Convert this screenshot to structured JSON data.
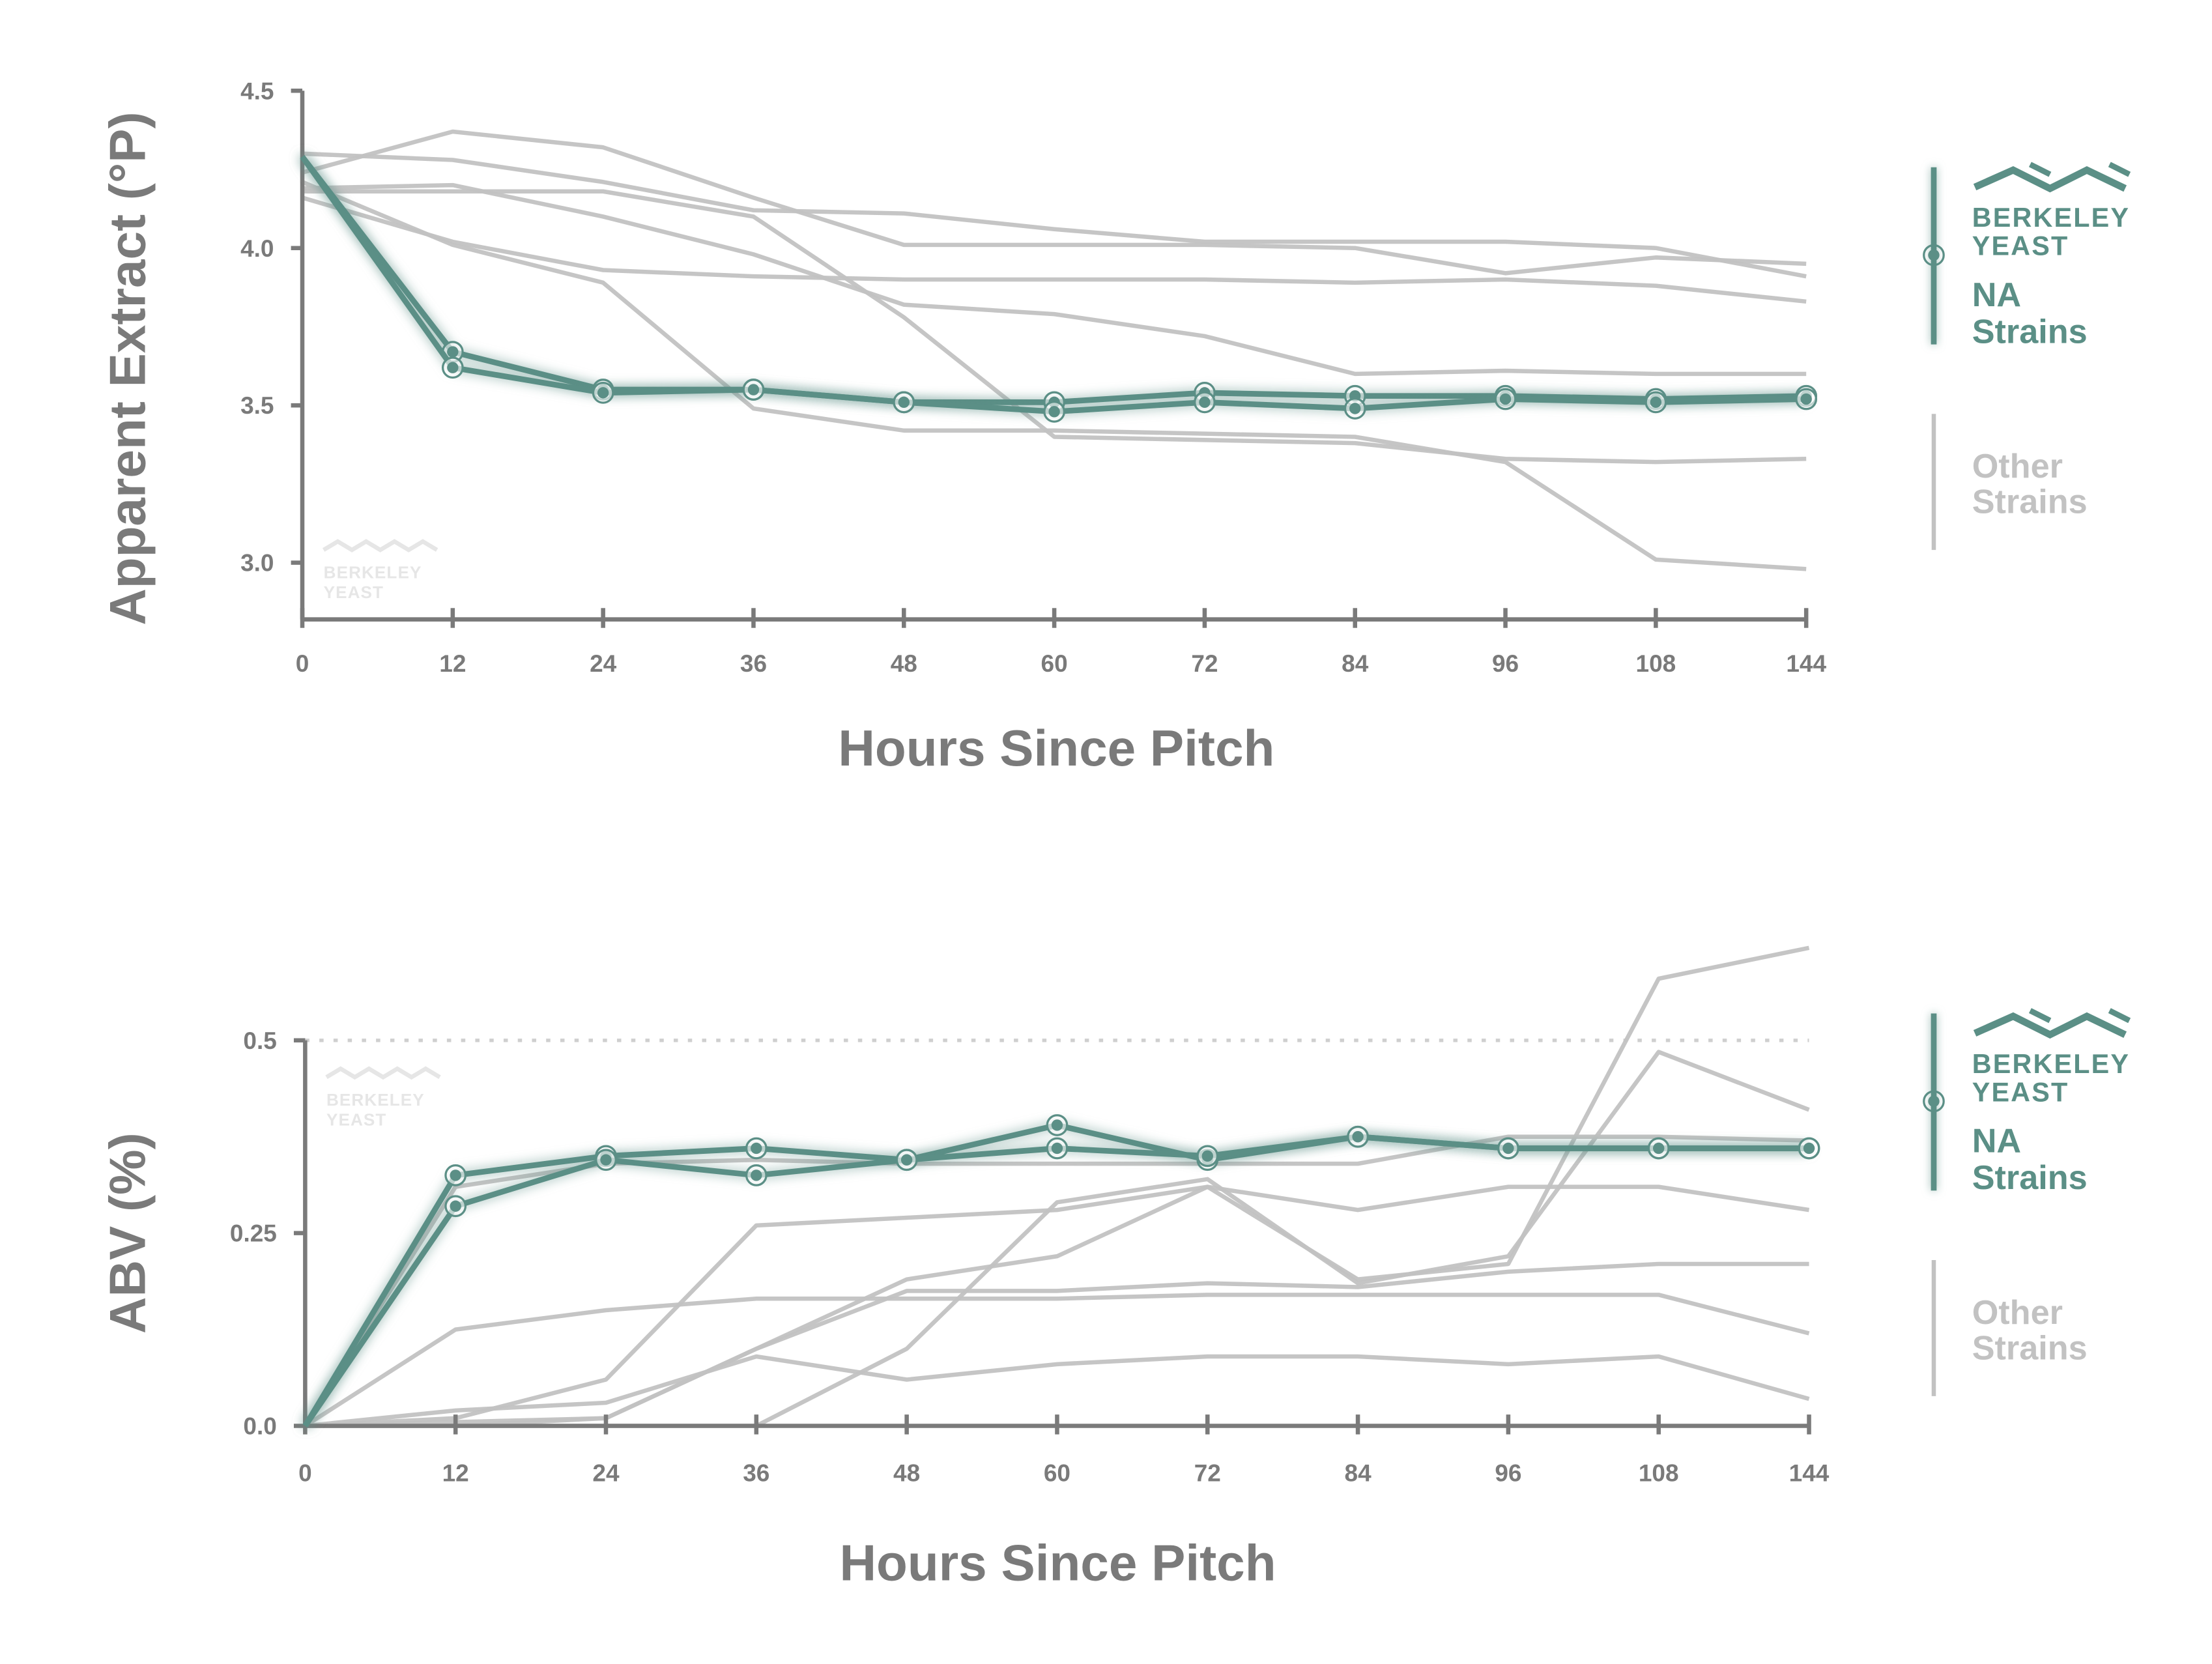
{
  "colors": {
    "na": "#5b8f86",
    "other": "#c2c2c2",
    "axis": "#7a7a7a"
  },
  "legend": {
    "brand_line1": "BERKELEY",
    "brand_line2": "YEAST",
    "na_line1": "NA",
    "na_line2": "Strains",
    "other_line1": "Other",
    "other_line2": "Strains"
  },
  "watermark": {
    "line1": "BERKELEY",
    "line2": "YEAST"
  },
  "chart_data": [
    {
      "type": "line",
      "xlabel": "Hours Since Pitch",
      "ylabel": "Apparent Extract (°P)",
      "categories": [
        "0",
        "12",
        "24",
        "36",
        "48",
        "60",
        "72",
        "84",
        "96",
        "108",
        "144"
      ],
      "yticks": [
        "4.5",
        "4.0",
        "3.5",
        "3.0"
      ],
      "ylim": [
        2.82,
        4.5
      ],
      "grid": false,
      "legend_position": "right",
      "series": [
        {
          "name": "NA Strains",
          "values": [
            4.29,
            3.67,
            3.55,
            3.55,
            3.51,
            3.51,
            3.54,
            3.53,
            3.53,
            3.52,
            3.53
          ]
        },
        {
          "name": "NA Strains",
          "values": [
            4.29,
            3.62,
            3.54,
            3.55,
            3.51,
            3.48,
            3.51,
            3.49,
            3.52,
            3.51,
            3.52
          ]
        },
        {
          "name": "Other Strains",
          "values": [
            4.24,
            4.37,
            4.32,
            4.16,
            4.01,
            4.01,
            4.01,
            4.0,
            3.92,
            3.97,
            3.95
          ]
        },
        {
          "name": "Other Strains",
          "values": [
            4.3,
            4.28,
            4.21,
            4.12,
            4.11,
            4.06,
            4.02,
            4.02,
            4.02,
            4.0,
            3.91
          ]
        },
        {
          "name": "Other Strains",
          "values": [
            4.19,
            4.2,
            4.1,
            3.98,
            3.82,
            3.79,
            3.72,
            3.6,
            3.61,
            3.6,
            3.6
          ]
        },
        {
          "name": "Other Strains",
          "values": [
            4.18,
            4.18,
            4.18,
            4.1,
            3.78,
            3.4,
            3.39,
            3.38,
            3.33,
            3.32,
            3.33
          ]
        },
        {
          "name": "Other Strains",
          "values": [
            4.16,
            4.02,
            3.93,
            3.91,
            3.9,
            3.9,
            3.9,
            3.89,
            3.9,
            3.88,
            3.83
          ]
        },
        {
          "name": "Other Strains",
          "values": [
            4.21,
            4.01,
            3.89,
            3.49,
            3.42,
            3.42,
            3.41,
            3.4,
            3.32,
            3.01,
            2.98
          ]
        }
      ]
    },
    {
      "type": "line",
      "xlabel": "Hours Since Pitch",
      "ylabel": "ABV (%)",
      "categories": [
        "0",
        "12",
        "24",
        "36",
        "48",
        "60",
        "72",
        "84",
        "96",
        "108",
        "144"
      ],
      "yticks": [
        "0.5",
        "0.25",
        "0.0"
      ],
      "ylim": [
        0,
        0.63
      ],
      "reference_line": 0.5,
      "grid": false,
      "legend_position": "right",
      "series": [
        {
          "name": "NA Strains",
          "values": [
            0,
            0.325,
            0.35,
            0.36,
            0.345,
            0.39,
            0.345,
            0.375,
            0.36,
            0.36,
            0.36
          ]
        },
        {
          "name": "NA Strains",
          "values": [
            0,
            0.285,
            0.345,
            0.325,
            0.345,
            0.36,
            0.35,
            0.375,
            0.36,
            0.36,
            0.36
          ]
        },
        {
          "name": "Other Strains",
          "values": [
            0,
            0.31,
            0.34,
            0.345,
            0.34,
            0.34,
            0.34,
            0.34,
            0.375,
            0.375,
            0.37
          ]
        },
        {
          "name": "Other Strains",
          "values": [
            0,
            0.125,
            0.15,
            0.165,
            0.165,
            0.165,
            0.17,
            0.17,
            0.17,
            0.17,
            0.12
          ]
        },
        {
          "name": "Other Strains",
          "values": [
            0,
            0.01,
            0.06,
            0.26,
            0.27,
            0.28,
            0.31,
            0.28,
            0.31,
            0.31,
            0.28
          ]
        },
        {
          "name": "Other Strains",
          "values": [
            0,
            0.02,
            0.03,
            0.09,
            0.06,
            0.08,
            0.09,
            0.09,
            0.08,
            0.09,
            0.035
          ]
        },
        {
          "name": "Other Strains",
          "values": [
            0,
            0,
            0.01,
            0.1,
            0.19,
            0.22,
            0.31,
            0.19,
            0.21,
            0.58,
            0.62
          ]
        },
        {
          "name": "Other Strains",
          "values": [
            0,
            0,
            0,
            0,
            0.1,
            0.29,
            0.32,
            0.185,
            0.22,
            0.485,
            0.41
          ]
        },
        {
          "name": "Other Strains",
          "values": [
            0,
            0.005,
            0.01,
            0.1,
            0.175,
            0.175,
            0.185,
            0.18,
            0.2,
            0.21,
            0.21
          ]
        }
      ]
    }
  ]
}
